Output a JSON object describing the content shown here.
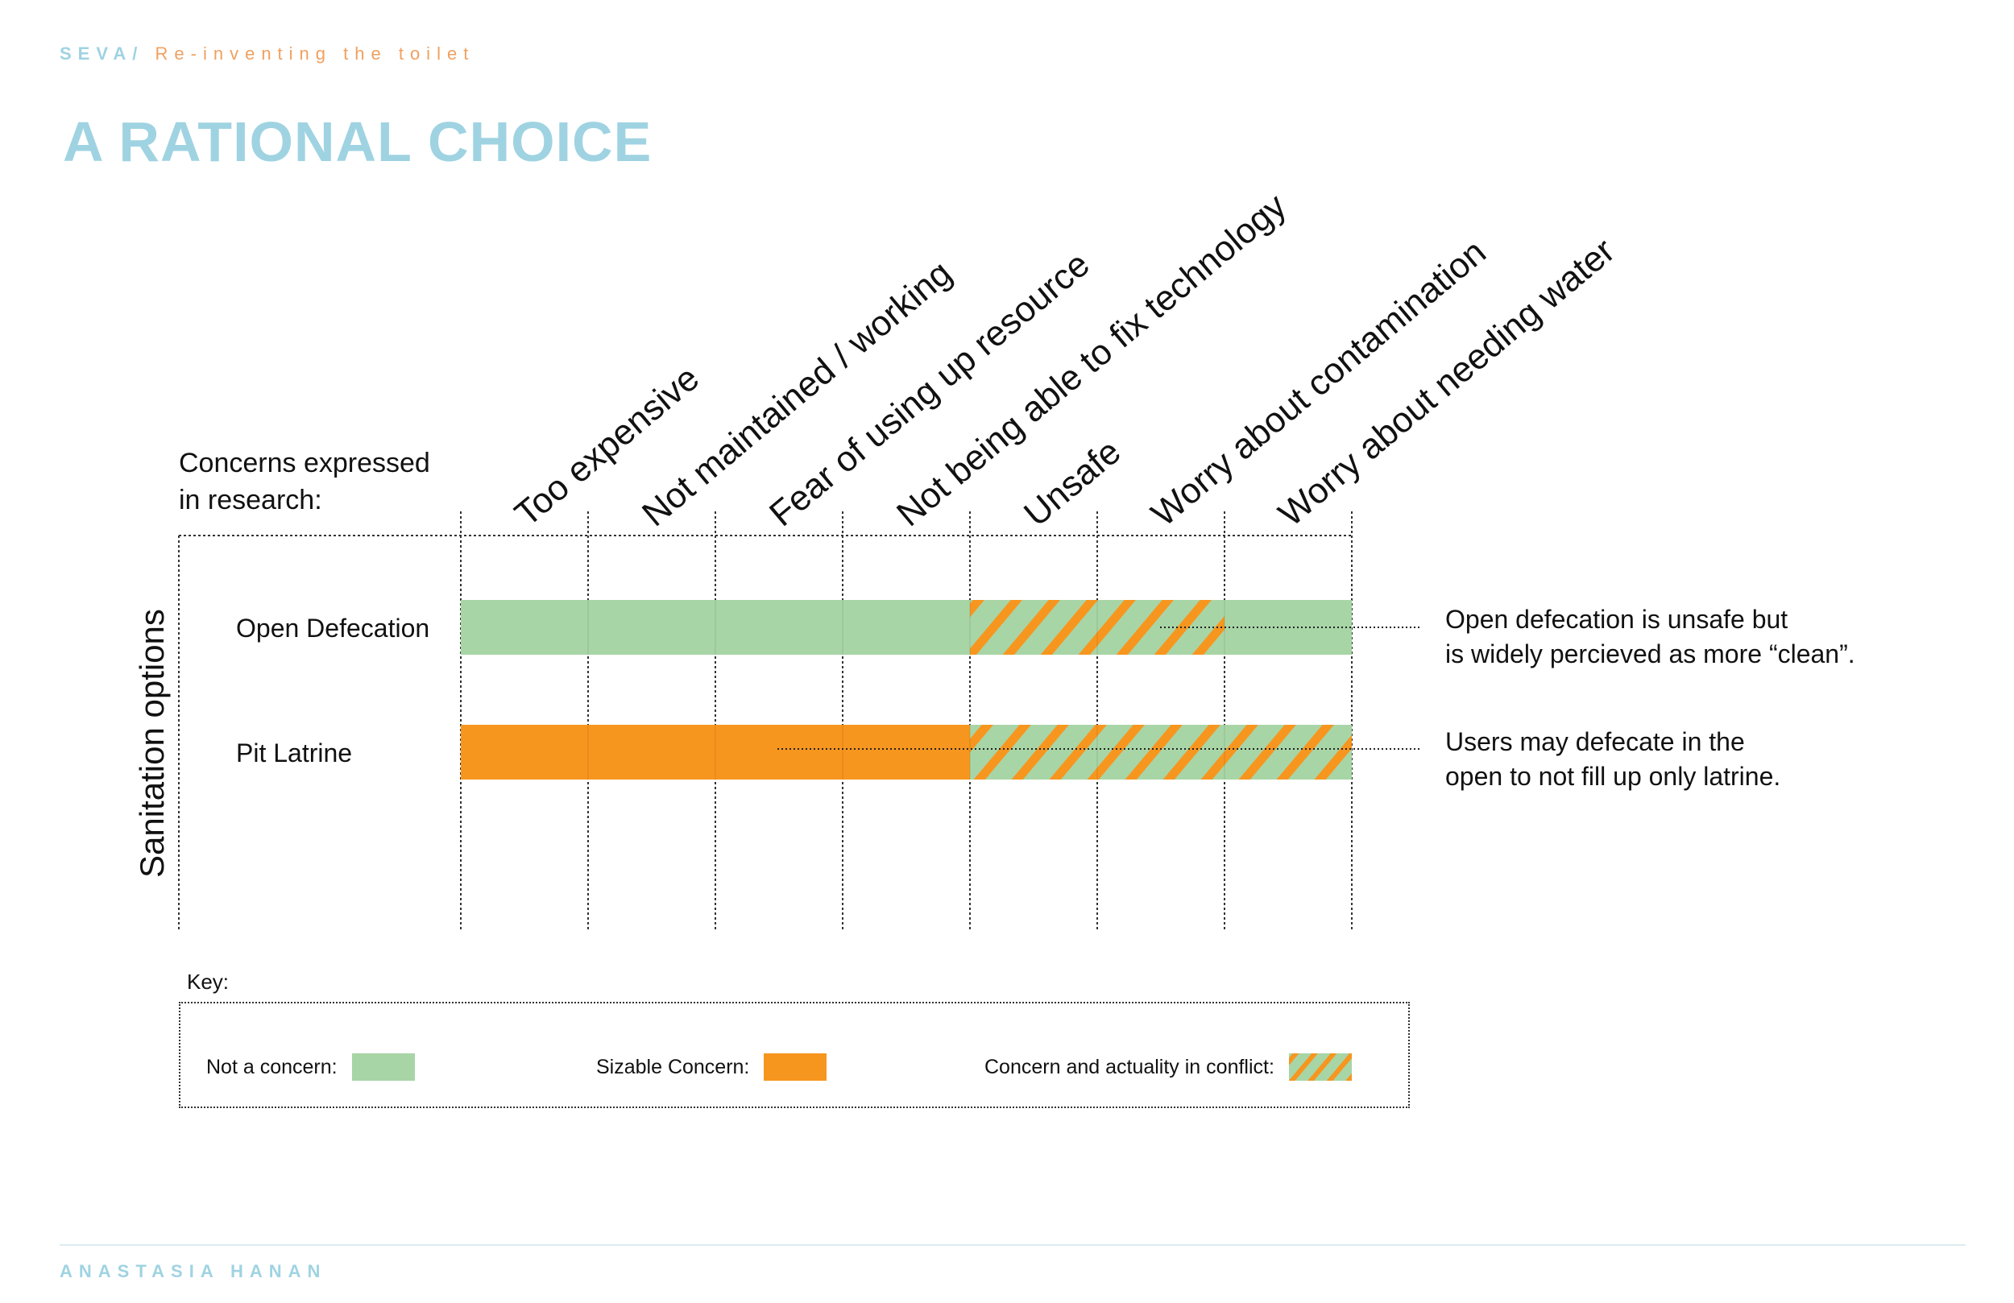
{
  "header": {
    "project": "SEVA/",
    "subtitle": "Re-inventing the toilet",
    "title": "A RATIONAL CHOICE"
  },
  "axis": {
    "columns_label_line1": "Concerns expressed",
    "columns_label_line2": "in research:",
    "rows_label": "Sanitation options"
  },
  "columns": [
    "Too expensive",
    "Not maintained / working",
    "Fear of using up resource",
    "Not being able to fix technology",
    "Unsafe",
    "Worry about contamination",
    "Worry about needing water"
  ],
  "rows": [
    {
      "label": "Open Defecation",
      "cells": [
        "not",
        "not",
        "not",
        "not",
        "conflict",
        "conflict",
        "not"
      ],
      "note_line1": "Open defecation is unsafe but",
      "note_line2": "is widely percieved as more “clean”."
    },
    {
      "label": "Pit Latrine",
      "cells": [
        "sizable",
        "sizable",
        "sizable",
        "sizable",
        "conflict",
        "conflict",
        "conflict"
      ],
      "note_line1": "Users may defecate in the",
      "note_line2": "open to not fill up only latrine."
    }
  ],
  "legend": {
    "title": "Key:",
    "not_concern": "Not a concern:",
    "sizable": "Sizable Concern:",
    "conflict": "Concern and actuality in conflict:"
  },
  "colors": {
    "not": "#a8d5a6",
    "sizable": "#f7961f",
    "conflict_stripe": "#f7961f",
    "conflict_base": "#a8d5a6",
    "accent": "#9fd3e2"
  },
  "footer": {
    "author": "ANASTASIA HANAN"
  }
}
